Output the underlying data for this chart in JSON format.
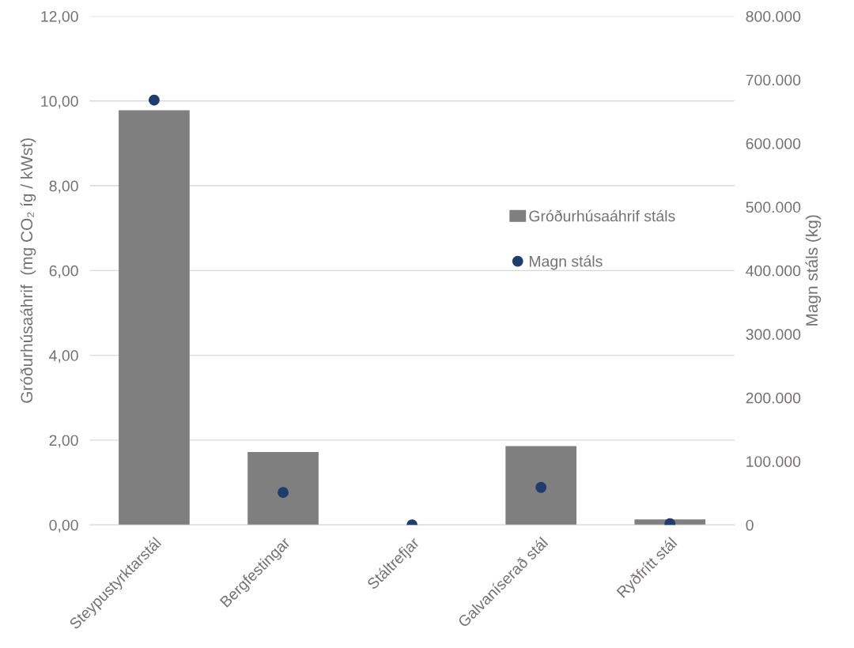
{
  "chart_data": {
    "type": "bar",
    "categories": [
      "Steypustyrktarstál",
      "Bergfestingar",
      "Stáltrefjar",
      "Galvaníserað stál",
      "Ryðfrítt stál"
    ],
    "ylabel": "Gróðurhúsaáhrif  (mg CO₂ íg / kWst)",
    "y2label": "Magn stáls (kg)",
    "series": [
      {
        "name": "Gróðurhúsaáhrif stáls",
        "color": "#7f7f7f",
        "values": [
          9.78,
          1.72,
          0,
          1.86,
          0.13
        ]
      },
      {
        "name": "Magn stáls",
        "type": "scatter",
        "axis": "y2",
        "color": "#1f3e6e",
        "marker": "circle",
        "values": [
          668000,
          51000,
          0,
          59000,
          2000
        ]
      }
    ],
    "ylim": [
      0,
      12
    ],
    "yticks": [
      {
        "value": 0,
        "label": "0,00"
      },
      {
        "value": 2,
        "label": "2,00"
      },
      {
        "value": 4,
        "label": "4,00"
      },
      {
        "value": 6,
        "label": "6,00"
      },
      {
        "value": 8,
        "label": "8,00"
      },
      {
        "value": 10,
        "label": "10,00"
      },
      {
        "value": 12,
        "label": "12,00"
      }
    ],
    "y2lim": [
      0,
      800000
    ],
    "y2ticks": [
      0,
      {
        "value": 100000,
        "label": "100.000"
      },
      {
        "value": 200000,
        "label": "200.000"
      },
      {
        "value": 300000,
        "label": "300.000"
      },
      {
        "value": 400000,
        "label": "400.000"
      },
      {
        "value": 500000,
        "label": "500.000"
      },
      {
        "value": 600000,
        "label": "600.000"
      },
      {
        "value": 700000,
        "label": "700.000"
      },
      {
        "value": 800000,
        "label": "800.000"
      }
    ],
    "grid": "y",
    "legend": "center right"
  }
}
